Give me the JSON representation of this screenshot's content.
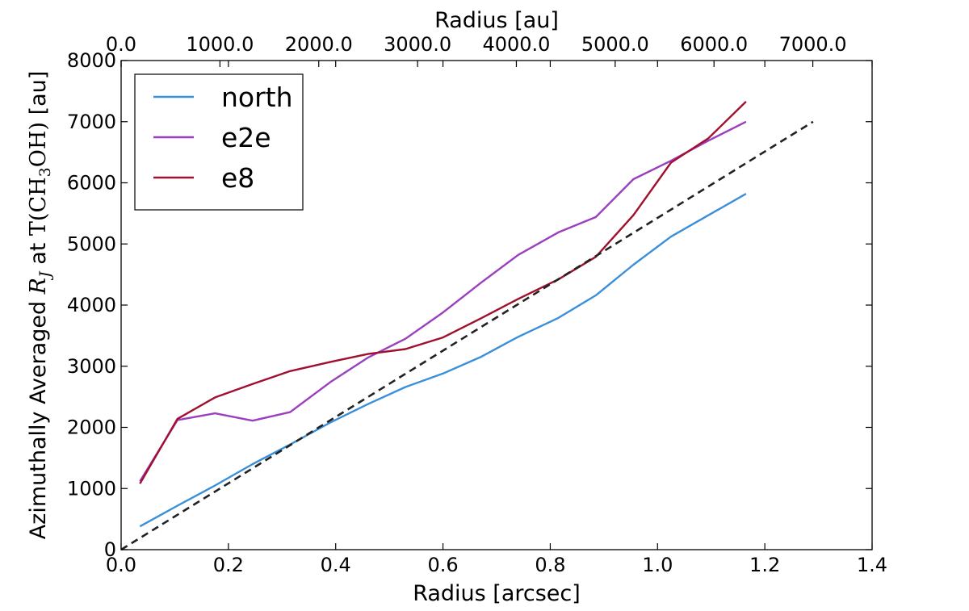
{
  "chart_data": {
    "type": "line",
    "xlabel": "Radius [arcsec]",
    "ylabel_prefix": "Azimuthally Averaged ",
    "ylabel_math_var": "R",
    "ylabel_math_sub": "J",
    "ylabel_mid": " at ",
    "ylabel_math_func": "T(CH",
    "ylabel_math_sub3": "3",
    "ylabel_math_end": "OH)",
    "ylabel_suffix": " [au]",
    "top_xlabel": "Radius [au]",
    "xlim": [
      0.0,
      1.4
    ],
    "ylim": [
      0,
      8000
    ],
    "top_xlim": [
      0,
      7600
    ],
    "xticks": [
      "0.0",
      "0.2",
      "0.4",
      "0.6",
      "0.8",
      "1.0",
      "1.2",
      "1.4"
    ],
    "xtick_values": [
      0.0,
      0.2,
      0.4,
      0.6,
      0.8,
      1.0,
      1.2,
      1.4
    ],
    "yticks": [
      "0",
      "1000",
      "2000",
      "3000",
      "4000",
      "5000",
      "6000",
      "7000",
      "8000"
    ],
    "ytick_values": [
      0,
      1000,
      2000,
      3000,
      4000,
      5000,
      6000,
      7000,
      8000
    ],
    "top_xticks": [
      "0.0",
      "1000.0",
      "2000.0",
      "3000.0",
      "4000.0",
      "5000.0",
      "6000.0",
      "7000.0"
    ],
    "top_xtick_values": [
      0,
      1000,
      2000,
      3000,
      4000,
      5000,
      6000,
      7000
    ],
    "grid": false,
    "legend_position": "top-left",
    "series": [
      {
        "name": "north",
        "color": "#3a8fd9",
        "style": "solid",
        "x": [
          0.035,
          0.105,
          0.175,
          0.245,
          0.315,
          0.39,
          0.46,
          0.53,
          0.6,
          0.67,
          0.74,
          0.815,
          0.885,
          0.955,
          1.025,
          1.095,
          1.165
        ],
        "y": [
          380,
          720,
          1050,
          1400,
          1720,
          2080,
          2380,
          2660,
          2880,
          3150,
          3480,
          3790,
          4160,
          4660,
          5120,
          5470,
          5820
        ]
      },
      {
        "name": "e2e",
        "color": "#9b3fbf",
        "style": "solid",
        "x": [
          0.035,
          0.105,
          0.175,
          0.245,
          0.315,
          0.39,
          0.46,
          0.53,
          0.6,
          0.67,
          0.74,
          0.815,
          0.885,
          0.955,
          1.025,
          1.095,
          1.165
        ],
        "y": [
          1120,
          2120,
          2230,
          2110,
          2250,
          2740,
          3140,
          3450,
          3880,
          4360,
          4820,
          5190,
          5440,
          6060,
          6360,
          6690,
          7000
        ]
      },
      {
        "name": "e8",
        "color": "#a0102e",
        "style": "solid",
        "x": [
          0.035,
          0.105,
          0.175,
          0.245,
          0.315,
          0.39,
          0.46,
          0.53,
          0.6,
          0.67,
          0.74,
          0.815,
          0.885,
          0.955,
          1.025,
          1.095,
          1.165
        ],
        "y": [
          1080,
          2140,
          2490,
          2710,
          2920,
          3070,
          3200,
          3280,
          3470,
          3780,
          4100,
          4420,
          4790,
          5470,
          6330,
          6730,
          7330
        ]
      },
      {
        "color": "#222222",
        "style": "dashed",
        "x": [
          0.0,
          1.29
        ],
        "y": [
          0,
          7000
        ]
      }
    ]
  }
}
